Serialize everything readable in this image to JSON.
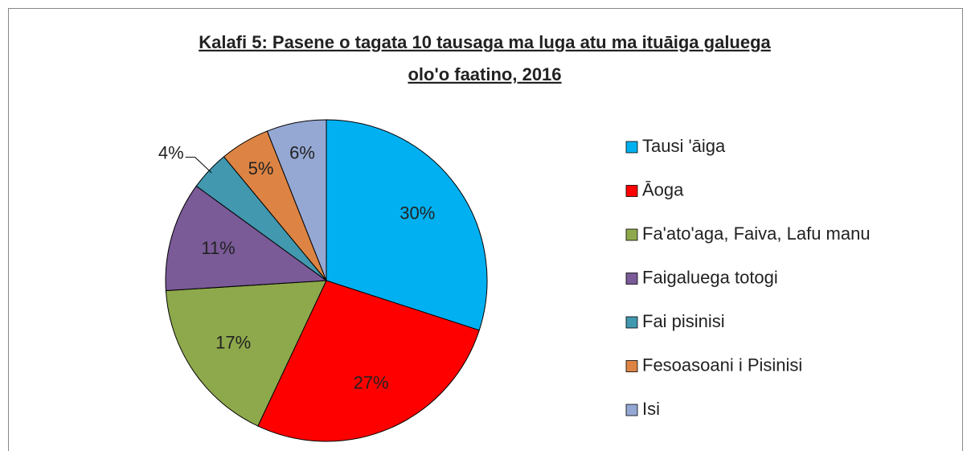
{
  "chart_data": {
    "type": "pie",
    "title": [
      "Kalafi 5: Pasene o tagata 10 tausaga ma luga atu ma ituāiga galuega",
      "olo'o faatino, 2016"
    ],
    "categories": [
      "Tausi 'āiga",
      "Āoga",
      "Fa'ato'aga, Faiva, Lafu manu",
      "Faigaluega totogi",
      "Fai pisinisi",
      "Fesoasoani i Pisinisi",
      "Isi"
    ],
    "values": [
      30,
      27,
      17,
      11,
      4,
      5,
      6
    ],
    "value_labels": [
      "30%",
      "27%",
      "17%",
      "11%",
      "4%",
      "5%",
      "6%"
    ],
    "colors": [
      "#00b0f0",
      "#ff0000",
      "#8ea94b",
      "#7a5a97",
      "#4198af",
      "#dd8444",
      "#95a8d4"
    ],
    "legend": "right"
  }
}
